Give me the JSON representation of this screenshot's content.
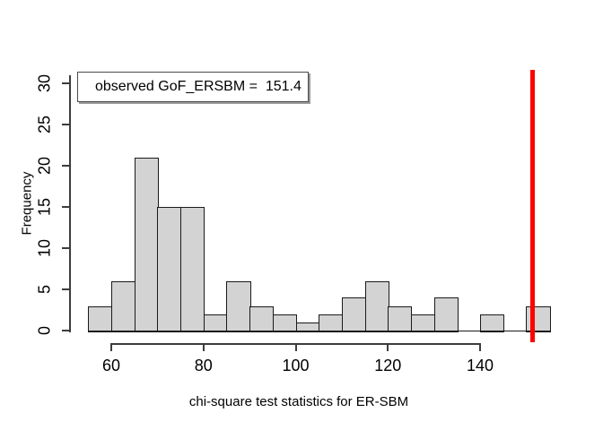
{
  "chart_data": {
    "type": "bar",
    "subtype": "histogram",
    "title": "",
    "xlabel": "chi-square test statistics for ER-SBM",
    "ylabel": "Frequency",
    "bin_edges": [
      55,
      60,
      65,
      70,
      75,
      80,
      85,
      90,
      95,
      100,
      105,
      110,
      115,
      120,
      125,
      130,
      135,
      140,
      145,
      150,
      155
    ],
    "counts": [
      3,
      6,
      21,
      15,
      15,
      2,
      6,
      3,
      2,
      1,
      2,
      4,
      6,
      3,
      2,
      4,
      0,
      2,
      0,
      3
    ],
    "x_ticks": [
      60,
      80,
      100,
      120,
      140
    ],
    "y_ticks": [
      0,
      5,
      10,
      15,
      20,
      25,
      30
    ],
    "xlim": [
      55,
      155
    ],
    "ylim": [
      0,
      30
    ],
    "grid": false,
    "legend": {
      "text": "observed GoF_ERSBM =  151.4",
      "position": "top-left"
    },
    "observed_value": 151.4,
    "colors": {
      "bar_fill": "#d3d3d3",
      "bar_border": "#1a1a1a",
      "observed_line": "#ff0000",
      "axis": "#3d3d3d",
      "text": "#000000",
      "background": "#ffffff"
    }
  }
}
